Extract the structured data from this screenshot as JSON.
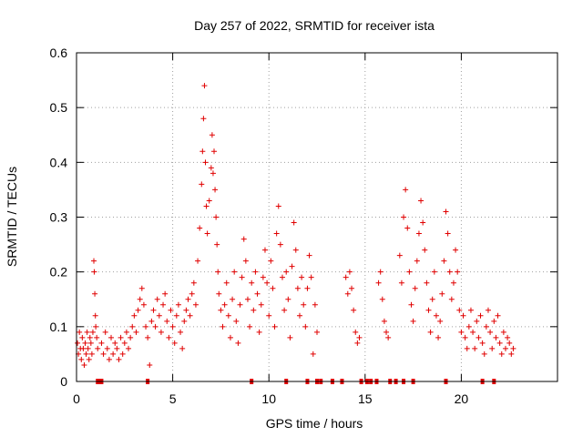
{
  "chart_data": {
    "type": "scatter",
    "title": "Day 257 of 2022, SRMTID for receiver ista",
    "xlabel": "GPS time / hours",
    "ylabel": "SRMTID / TECUs",
    "xlim": [
      0,
      25
    ],
    "ylim": [
      0,
      0.6
    ],
    "x_ticks": [
      0,
      5,
      10,
      15,
      20
    ],
    "x_tick_labels": [
      "0",
      "5",
      "10",
      "15",
      "20"
    ],
    "y_ticks": [
      0,
      0.1,
      0.2,
      0.3,
      0.4,
      0.5,
      0.6
    ],
    "y_tick_labels": [
      "0",
      "0.1",
      "0.2",
      "0.3",
      "0.4",
      "0.5",
      "0.6"
    ],
    "grid": true,
    "marker": "plus",
    "color": "#e00000",
    "series": [
      {
        "name": "SRMTID",
        "points": [
          [
            0.05,
            0.07
          ],
          [
            0.1,
            0.05
          ],
          [
            0.15,
            0.09
          ],
          [
            0.2,
            0.06
          ],
          [
            0.25,
            0.04
          ],
          [
            0.3,
            0.08
          ],
          [
            0.35,
            0.06
          ],
          [
            0.4,
            0.03
          ],
          [
            0.45,
            0.07
          ],
          [
            0.5,
            0.05
          ],
          [
            0.55,
            0.09
          ],
          [
            0.6,
            0.06
          ],
          [
            0.65,
            0.04
          ],
          [
            0.7,
            0.08
          ],
          [
            0.75,
            0.07
          ],
          [
            0.8,
            0.05
          ],
          [
            0.85,
            0.09
          ],
          [
            0.9,
            0.22
          ],
          [
            0.92,
            0.2
          ],
          [
            0.95,
            0.16
          ],
          [
            0.98,
            0.12
          ],
          [
            1.0,
            0.1
          ],
          [
            1.05,
            0.08
          ],
          [
            1.1,
            0.06
          ],
          [
            1.3,
            0.07
          ],
          [
            1.4,
            0.05
          ],
          [
            1.5,
            0.09
          ],
          [
            1.6,
            0.06
          ],
          [
            1.7,
            0.04
          ],
          [
            1.8,
            0.08
          ],
          [
            1.9,
            0.05
          ],
          [
            2.0,
            0.07
          ],
          [
            2.1,
            0.06
          ],
          [
            2.2,
            0.04
          ],
          [
            2.3,
            0.08
          ],
          [
            2.4,
            0.05
          ],
          [
            2.5,
            0.07
          ],
          [
            2.6,
            0.09
          ],
          [
            2.7,
            0.06
          ],
          [
            2.8,
            0.08
          ],
          [
            2.9,
            0.1
          ],
          [
            3.0,
            0.12
          ],
          [
            3.1,
            0.09
          ],
          [
            3.2,
            0.13
          ],
          [
            3.3,
            0.15
          ],
          [
            3.4,
            0.17
          ],
          [
            3.5,
            0.14
          ],
          [
            3.6,
            0.1
          ],
          [
            3.7,
            0.08
          ],
          [
            3.8,
            0.03
          ],
          [
            3.9,
            0.11
          ],
          [
            4.0,
            0.13
          ],
          [
            4.1,
            0.1
          ],
          [
            4.2,
            0.15
          ],
          [
            4.3,
            0.12
          ],
          [
            4.4,
            0.09
          ],
          [
            4.5,
            0.14
          ],
          [
            4.6,
            0.16
          ],
          [
            4.7,
            0.11
          ],
          [
            4.8,
            0.08
          ],
          [
            4.9,
            0.13
          ],
          [
            5.0,
            0.1
          ],
          [
            5.1,
            0.07
          ],
          [
            5.2,
            0.12
          ],
          [
            5.3,
            0.14
          ],
          [
            5.4,
            0.09
          ],
          [
            5.5,
            0.06
          ],
          [
            5.6,
            0.11
          ],
          [
            5.7,
            0.13
          ],
          [
            5.8,
            0.15
          ],
          [
            5.9,
            0.12
          ],
          [
            6.0,
            0.16
          ],
          [
            6.1,
            0.18
          ],
          [
            6.2,
            0.14
          ],
          [
            6.3,
            0.22
          ],
          [
            6.4,
            0.28
          ],
          [
            6.5,
            0.36
          ],
          [
            6.55,
            0.42
          ],
          [
            6.6,
            0.48
          ],
          [
            6.65,
            0.54
          ],
          [
            6.7,
            0.4
          ],
          [
            6.75,
            0.32
          ],
          [
            6.8,
            0.27
          ],
          [
            6.9,
            0.33
          ],
          [
            7.0,
            0.39
          ],
          [
            7.05,
            0.45
          ],
          [
            7.1,
            0.38
          ],
          [
            7.15,
            0.42
          ],
          [
            7.2,
            0.35
          ],
          [
            7.25,
            0.3
          ],
          [
            7.3,
            0.25
          ],
          [
            7.35,
            0.2
          ],
          [
            7.4,
            0.16
          ],
          [
            7.5,
            0.13
          ],
          [
            7.6,
            0.1
          ],
          [
            7.7,
            0.14
          ],
          [
            7.8,
            0.18
          ],
          [
            7.9,
            0.12
          ],
          [
            8.0,
            0.08
          ],
          [
            8.1,
            0.15
          ],
          [
            8.2,
            0.2
          ],
          [
            8.3,
            0.11
          ],
          [
            8.4,
            0.07
          ],
          [
            8.5,
            0.14
          ],
          [
            8.6,
            0.19
          ],
          [
            8.7,
            0.26
          ],
          [
            8.8,
            0.22
          ],
          [
            8.9,
            0.15
          ],
          [
            9.0,
            0.1
          ],
          [
            9.1,
            0.18
          ],
          [
            9.2,
            0.13
          ],
          [
            9.3,
            0.2
          ],
          [
            9.4,
            0.16
          ],
          [
            9.5,
            0.09
          ],
          [
            9.6,
            0.14
          ],
          [
            9.7,
            0.19
          ],
          [
            9.8,
            0.24
          ],
          [
            9.9,
            0.18
          ],
          [
            10.0,
            0.12
          ],
          [
            10.1,
            0.22
          ],
          [
            10.2,
            0.17
          ],
          [
            10.3,
            0.1
          ],
          [
            10.4,
            0.27
          ],
          [
            10.5,
            0.32
          ],
          [
            10.6,
            0.25
          ],
          [
            10.7,
            0.19
          ],
          [
            10.8,
            0.13
          ],
          [
            10.9,
            0.2
          ],
          [
            11.0,
            0.15
          ],
          [
            11.1,
            0.08
          ],
          [
            11.2,
            0.21
          ],
          [
            11.3,
            0.29
          ],
          [
            11.4,
            0.24
          ],
          [
            11.5,
            0.17
          ],
          [
            11.6,
            0.12
          ],
          [
            11.7,
            0.19
          ],
          [
            11.8,
            0.14
          ],
          [
            11.9,
            0.1
          ],
          [
            12.0,
            0.17
          ],
          [
            12.1,
            0.23
          ],
          [
            12.2,
            0.19
          ],
          [
            12.3,
            0.05
          ],
          [
            12.4,
            0.14
          ],
          [
            12.5,
            0.09
          ],
          [
            14.0,
            0.19
          ],
          [
            14.1,
            0.16
          ],
          [
            14.2,
            0.2
          ],
          [
            14.3,
            0.17
          ],
          [
            14.4,
            0.13
          ],
          [
            14.5,
            0.09
          ],
          [
            14.6,
            0.07
          ],
          [
            14.7,
            0.08
          ],
          [
            15.7,
            0.18
          ],
          [
            15.8,
            0.2
          ],
          [
            15.9,
            0.15
          ],
          [
            16.0,
            0.11
          ],
          [
            16.1,
            0.09
          ],
          [
            16.2,
            0.08
          ],
          [
            16.8,
            0.23
          ],
          [
            16.9,
            0.18
          ],
          [
            17.0,
            0.3
          ],
          [
            17.1,
            0.35
          ],
          [
            17.2,
            0.28
          ],
          [
            17.3,
            0.2
          ],
          [
            17.4,
            0.14
          ],
          [
            17.5,
            0.11
          ],
          [
            17.6,
            0.17
          ],
          [
            17.7,
            0.22
          ],
          [
            17.8,
            0.27
          ],
          [
            17.9,
            0.33
          ],
          [
            18.0,
            0.29
          ],
          [
            18.1,
            0.24
          ],
          [
            18.2,
            0.18
          ],
          [
            18.3,
            0.13
          ],
          [
            18.4,
            0.09
          ],
          [
            18.5,
            0.15
          ],
          [
            18.6,
            0.2
          ],
          [
            18.7,
            0.12
          ],
          [
            18.8,
            0.08
          ],
          [
            18.9,
            0.11
          ],
          [
            19.0,
            0.16
          ],
          [
            19.1,
            0.22
          ],
          [
            19.2,
            0.31
          ],
          [
            19.3,
            0.27
          ],
          [
            19.4,
            0.2
          ],
          [
            19.5,
            0.15
          ],
          [
            19.6,
            0.18
          ],
          [
            19.7,
            0.24
          ],
          [
            19.8,
            0.2
          ],
          [
            19.9,
            0.13
          ],
          [
            20.0,
            0.09
          ],
          [
            20.1,
            0.12
          ],
          [
            20.2,
            0.08
          ],
          [
            20.3,
            0.06
          ],
          [
            20.4,
            0.1
          ],
          [
            20.5,
            0.13
          ],
          [
            20.6,
            0.09
          ],
          [
            20.7,
            0.06
          ],
          [
            20.8,
            0.11
          ],
          [
            20.9,
            0.08
          ],
          [
            21.0,
            0.12
          ],
          [
            21.1,
            0.07
          ],
          [
            21.2,
            0.05
          ],
          [
            21.3,
            0.1
          ],
          [
            21.4,
            0.13
          ],
          [
            21.5,
            0.09
          ],
          [
            21.6,
            0.06
          ],
          [
            21.7,
            0.11
          ],
          [
            21.8,
            0.08
          ],
          [
            21.9,
            0.12
          ],
          [
            22.0,
            0.07
          ],
          [
            22.1,
            0.05
          ],
          [
            22.2,
            0.09
          ],
          [
            22.3,
            0.06
          ],
          [
            22.4,
            0.08
          ],
          [
            22.5,
            0.07
          ],
          [
            22.6,
            0.05
          ],
          [
            22.7,
            0.06
          ]
        ]
      }
    ],
    "baseline_markers_x": [
      1.1,
      1.2,
      1.3,
      3.7,
      9.1,
      10.9,
      12.0,
      12.5,
      12.7,
      13.3,
      13.8,
      14.8,
      15.1,
      15.3,
      15.6,
      16.3,
      16.6,
      17.0,
      17.5,
      19.2,
      21.1,
      21.7
    ]
  }
}
